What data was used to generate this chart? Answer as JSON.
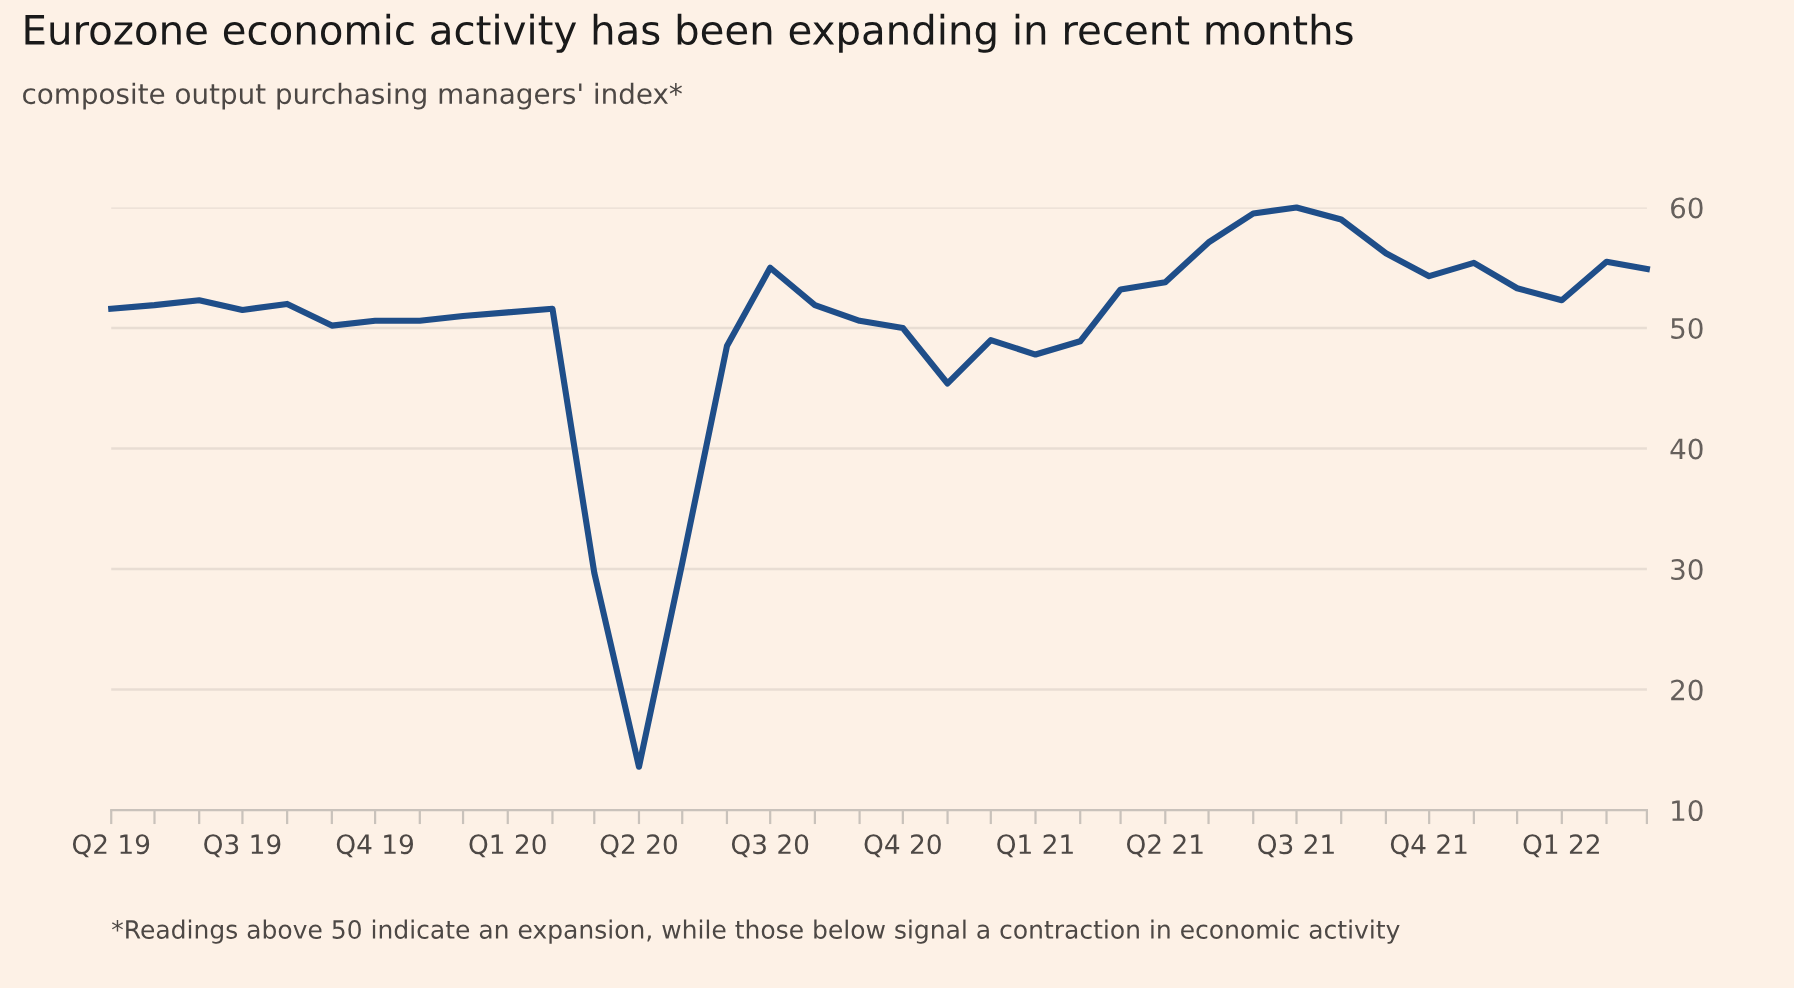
{
  "chart_data": {
    "type": "line",
    "title": "Eurozone economic activity has been expanding in recent months",
    "subtitle": "composite output purchasing managers' index*",
    "annotations": [
      "*Readings above 50 indicate an expansion, while those below signal a contraction in economic activity"
    ],
    "x": [
      "2019-04",
      "2019-05",
      "2019-06",
      "2019-07",
      "2019-08",
      "2019-09",
      "2019-10",
      "2019-11",
      "2019-12",
      "2020-01",
      "2020-02",
      "2020-03",
      "2020-04",
      "2020-05",
      "2020-06",
      "2020-07",
      "2020-08",
      "2020-09",
      "2020-10",
      "2020-11",
      "2020-12",
      "2021-01",
      "2021-02",
      "2021-03",
      "2021-04",
      "2021-05",
      "2021-06",
      "2021-07",
      "2021-08",
      "2021-09",
      "2021-10",
      "2021-11",
      "2021-12",
      "2022-01",
      "2022-02",
      "2022-03"
    ],
    "series": [
      {
        "color": "#1f4e89",
        "values": [
          51.6,
          51.9,
          52.3,
          51.5,
          52.0,
          50.2,
          50.6,
          50.6,
          51.0,
          51.3,
          51.6,
          29.7,
          13.6,
          30.5,
          48.5,
          55.0,
          51.9,
          50.6,
          50.0,
          45.4,
          49.0,
          47.8,
          48.9,
          53.2,
          53.8,
          57.1,
          59.5,
          60.0,
          59.0,
          56.2,
          54.3,
          55.4,
          53.3,
          52.3,
          55.5,
          54.9
        ]
      }
    ],
    "xlim": [
      "2019-04",
      "2022-03"
    ],
    "ylim": [
      10,
      60
    ],
    "yticks": [
      10,
      20,
      30,
      40,
      50,
      60
    ],
    "xticks": [
      {
        "value": "2019-04",
        "label": "Q2 19"
      },
      {
        "value": "2019-05",
        "label": null
      },
      {
        "value": "2019-06",
        "label": null
      },
      {
        "value": "2019-07",
        "label": "Q3 19"
      },
      {
        "value": "2019-08",
        "label": null
      },
      {
        "value": "2019-09",
        "label": null
      },
      {
        "value": "2019-10",
        "label": "Q4 19"
      },
      {
        "value": "2019-11",
        "label": null
      },
      {
        "value": "2019-12",
        "label": null
      },
      {
        "value": "2020-01",
        "label": "Q1 20"
      },
      {
        "value": "2020-02",
        "label": null
      },
      {
        "value": "2020-03",
        "label": null
      },
      {
        "value": "2020-04",
        "label": "Q2 20"
      },
      {
        "value": "2020-05",
        "label": null
      },
      {
        "value": "2020-06",
        "label": null
      },
      {
        "value": "2020-07",
        "label": "Q3 20"
      },
      {
        "value": "2020-08",
        "label": null
      },
      {
        "value": "2020-09",
        "label": null
      },
      {
        "value": "2020-10",
        "label": "Q4 20"
      },
      {
        "value": "2020-11",
        "label": null
      },
      {
        "value": "2020-12",
        "label": null
      },
      {
        "value": "2021-01",
        "label": "Q1 21"
      },
      {
        "value": "2021-02",
        "label": null
      },
      {
        "value": "2021-03",
        "label": null
      },
      {
        "value": "2021-04",
        "label": "Q2 21"
      },
      {
        "value": "2021-05",
        "label": null
      },
      {
        "value": "2021-06",
        "label": null
      },
      {
        "value": "2021-07",
        "label": "Q3 21"
      },
      {
        "value": "2021-08",
        "label": null
      },
      {
        "value": "2021-09",
        "label": null
      },
      {
        "value": "2021-10",
        "label": "Q4 21"
      },
      {
        "value": "2021-11",
        "label": null
      },
      {
        "value": "2021-12",
        "label": null
      },
      {
        "value": "2022-01",
        "label": "Q1 22"
      },
      {
        "value": "2022-02",
        "label": null
      },
      {
        "value": "2022-03",
        "label": null
      }
    ],
    "grid": "y",
    "legend": false,
    "line_style": "solid",
    "marker": "none"
  }
}
